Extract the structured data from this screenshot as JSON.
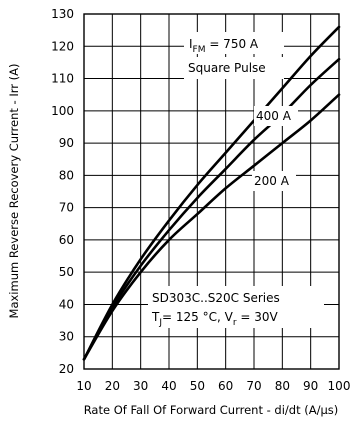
{
  "chart_data": {
    "type": "line",
    "xlabel": "Rate Of Fall Of Forward Current - di/dt (A/µs)",
    "ylabel": "Maximum Reverse Recovery Current - Irr (A)",
    "xlim": [
      10,
      100
    ],
    "ylim": [
      20,
      130
    ],
    "x_ticks": [
      "10",
      "20",
      "30",
      "40",
      "50",
      "60",
      "70",
      "80",
      "90",
      "100"
    ],
    "y_ticks": [
      "20",
      "30",
      "40",
      "50",
      "60",
      "70",
      "80",
      "90",
      "100",
      "110",
      "120",
      "130"
    ],
    "grid": true,
    "series": [
      {
        "name": "I FM = 750 A",
        "label_parts": {
          "main": "I",
          "sub": "FM",
          "rest": " = 750 A"
        },
        "x": [
          10,
          20,
          30,
          40,
          50,
          60,
          70,
          80,
          90,
          100
        ],
        "y": [
          23,
          40,
          54,
          66,
          77,
          87,
          97,
          107,
          117,
          126
        ]
      },
      {
        "name": "400 A",
        "x": [
          10,
          20,
          30,
          40,
          50,
          60,
          70,
          80,
          90,
          100
        ],
        "y": [
          23,
          39,
          52,
          63,
          73,
          82,
          91,
          99,
          108,
          116
        ]
      },
      {
        "name": "200 A",
        "x": [
          10,
          20,
          30,
          40,
          50,
          60,
          70,
          80,
          90,
          100
        ],
        "y": [
          23,
          38,
          50,
          60,
          68,
          76,
          83,
          90,
          97,
          105
        ]
      }
    ],
    "annotations": {
      "pulse": "Square Pulse",
      "series_name": "SD303C..S20C Series",
      "cond_a_main": "T",
      "cond_a_sub": "J",
      "cond_a_rest": "= 125 °C, V",
      "cond_b_sub": "r",
      "cond_b_rest": " = 30V"
    }
  }
}
